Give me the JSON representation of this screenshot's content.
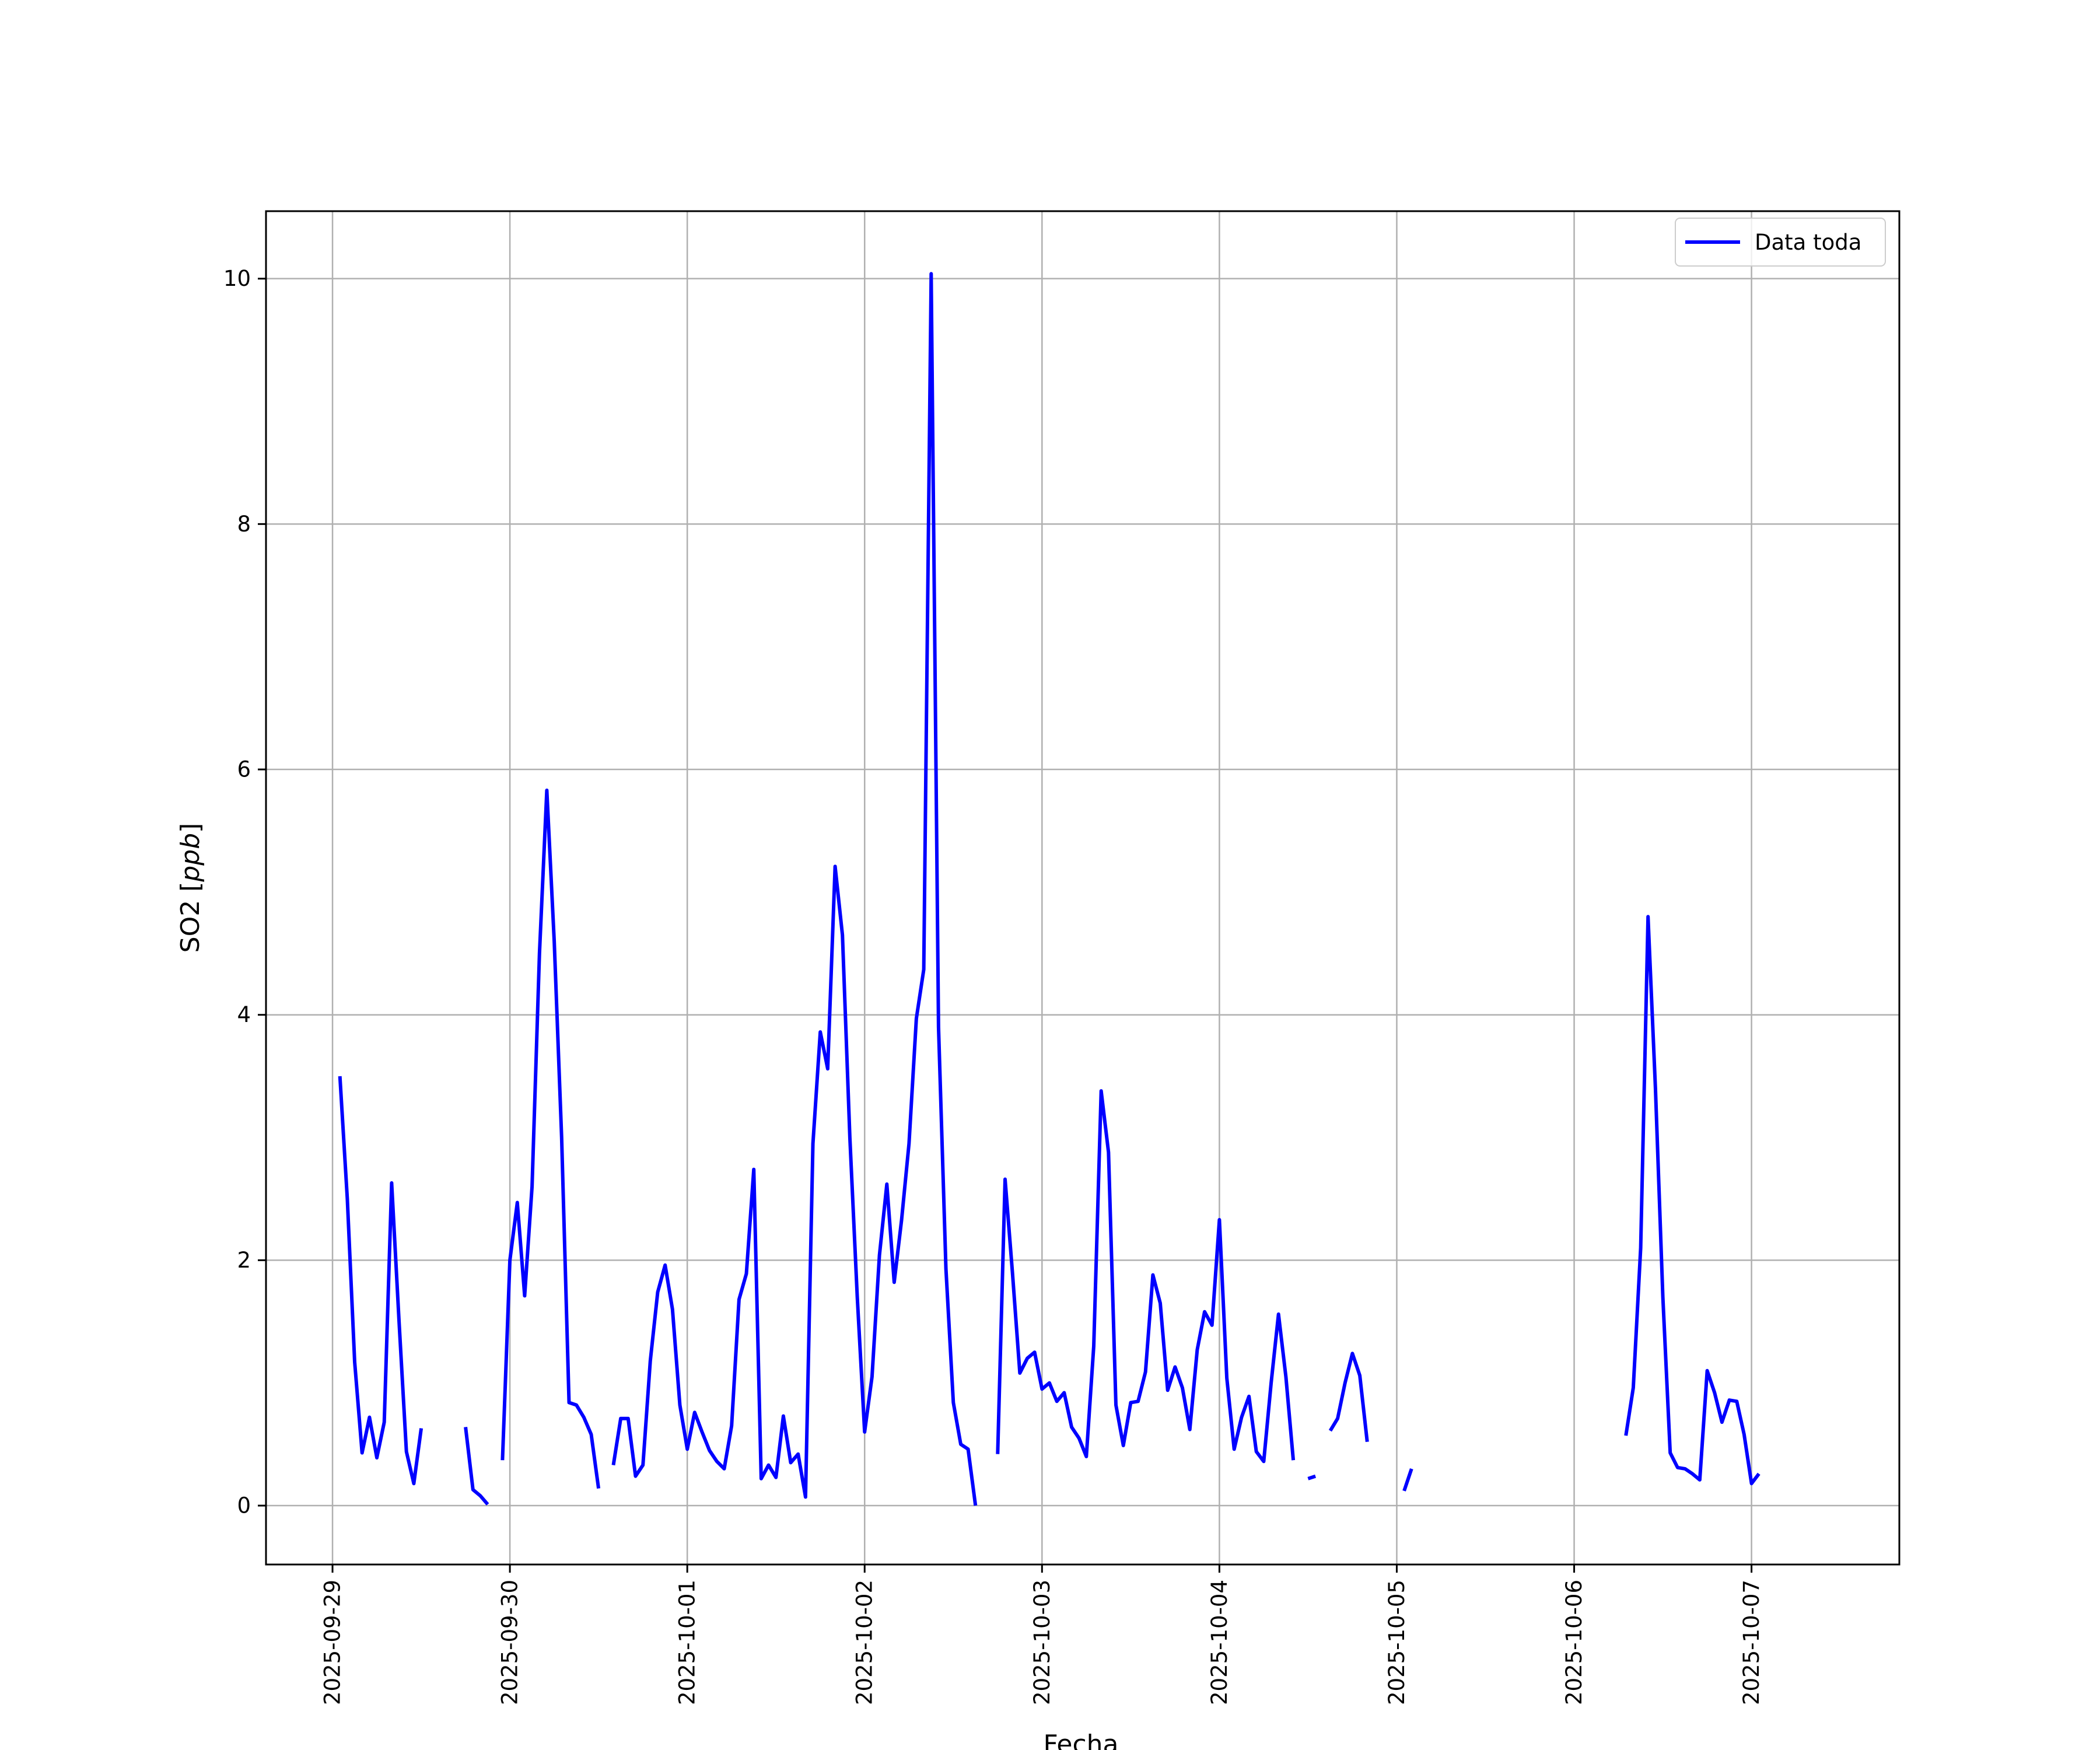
{
  "chart_data": {
    "type": "line",
    "xlabel": "Fecha",
    "ylabel_main": "SO2 [",
    "ylabel_unit": "ppb",
    "ylabel_close": "]",
    "ylim": [
      -0.48,
      10.55
    ],
    "xlim": [
      "2025-09-28T15:00",
      "2025-10-07T20:00"
    ],
    "x_ticks": [
      "2025-09-29",
      "2025-09-30",
      "2025-10-01",
      "2025-10-02",
      "2025-10-03",
      "2025-10-04",
      "2025-10-05",
      "2025-10-06",
      "2025-10-07"
    ],
    "y_ticks": [
      0,
      2,
      4,
      6,
      8,
      10
    ],
    "grid": true,
    "legend_position": "top-right",
    "colors": {
      "series": "#0000ff",
      "grid": "#b0b0b0",
      "axes": "#000000"
    },
    "series": [
      {
        "name": "Data toda",
        "segments": [
          [
            [
              "2025-09-29T01:00",
              3.5
            ],
            [
              "2025-09-29T02:00",
              2.5
            ],
            [
              "2025-09-29T03:00",
              1.17
            ],
            [
              "2025-09-29T04:00",
              0.43
            ],
            [
              "2025-09-29T05:00",
              0.72
            ],
            [
              "2025-09-29T06:00",
              0.39
            ],
            [
              "2025-09-29T07:00",
              0.68
            ],
            [
              "2025-09-29T08:00",
              2.63
            ],
            [
              "2025-09-29T09:00",
              1.5
            ],
            [
              "2025-09-29T10:00",
              0.44
            ],
            [
              "2025-09-29T11:00",
              0.18
            ],
            [
              "2025-09-29T12:00",
              0.63
            ]
          ],
          [
            [
              "2025-09-29T18:00",
              0.64
            ],
            [
              "2025-09-29T19:00",
              0.13
            ],
            [
              "2025-09-29T20:00",
              0.08
            ],
            [
              "2025-09-29T21:00",
              0.01
            ]
          ],
          [
            [
              "2025-09-29T23:00",
              0.37
            ],
            [
              "2025-09-30T00:00",
              2.0
            ],
            [
              "2025-09-30T01:00",
              2.47
            ],
            [
              "2025-09-30T02:00",
              1.71
            ],
            [
              "2025-09-30T03:00",
              2.6
            ],
            [
              "2025-09-30T04:00",
              4.5
            ],
            [
              "2025-09-30T05:00",
              5.83
            ],
            [
              "2025-09-30T06:00",
              4.6
            ],
            [
              "2025-09-30T07:00",
              3.0
            ],
            [
              "2025-09-30T08:00",
              0.84
            ],
            [
              "2025-09-30T09:00",
              0.82
            ],
            [
              "2025-09-30T10:00",
              0.72
            ],
            [
              "2025-09-30T11:00",
              0.58
            ],
            [
              "2025-09-30T12:00",
              0.14
            ]
          ],
          [
            [
              "2025-09-30T14:00",
              0.33
            ],
            [
              "2025-09-30T15:00",
              0.71
            ],
            [
              "2025-09-30T16:00",
              0.71
            ],
            [
              "2025-09-30T17:00",
              0.24
            ],
            [
              "2025-09-30T18:00",
              0.33
            ],
            [
              "2025-09-30T19:00",
              1.18
            ],
            [
              "2025-09-30T20:00",
              1.74
            ],
            [
              "2025-09-30T21:00",
              1.96
            ],
            [
              "2025-09-30T22:00",
              1.6
            ],
            [
              "2025-09-30T23:00",
              0.82
            ],
            [
              "2025-10-01T00:00",
              0.46
            ],
            [
              "2025-10-01T01:00",
              0.76
            ],
            [
              "2025-10-01T02:00",
              0.6
            ],
            [
              "2025-10-01T03:00",
              0.45
            ],
            [
              "2025-10-01T04:00",
              0.36
            ],
            [
              "2025-10-01T05:00",
              0.3
            ],
            [
              "2025-10-01T06:00",
              0.65
            ],
            [
              "2025-10-01T07:00",
              1.68
            ],
            [
              "2025-10-01T08:00",
              1.89
            ],
            [
              "2025-10-01T09:00",
              2.74
            ],
            [
              "2025-10-01T10:00",
              0.22
            ],
            [
              "2025-10-01T11:00",
              0.33
            ],
            [
              "2025-10-01T12:00",
              0.23
            ],
            [
              "2025-10-01T13:00",
              0.73
            ],
            [
              "2025-10-01T14:00",
              0.35
            ],
            [
              "2025-10-01T15:00",
              0.42
            ],
            [
              "2025-10-01T16:00",
              0.07
            ],
            [
              "2025-10-01T17:00",
              2.95
            ],
            [
              "2025-10-01T18:00",
              3.86
            ],
            [
              "2025-10-01T19:00",
              3.56
            ],
            [
              "2025-10-01T20:00",
              5.21
            ],
            [
              "2025-10-01T21:00",
              4.65
            ],
            [
              "2025-10-01T22:00",
              3.0
            ],
            [
              "2025-10-01T23:00",
              1.7
            ],
            [
              "2025-10-02T00:00",
              0.6
            ],
            [
              "2025-10-02T01:00",
              1.05
            ],
            [
              "2025-10-02T02:00",
              2.04
            ],
            [
              "2025-10-02T03:00",
              2.62
            ],
            [
              "2025-10-02T04:00",
              1.82
            ],
            [
              "2025-10-02T05:00",
              2.33
            ],
            [
              "2025-10-02T06:00",
              2.95
            ],
            [
              "2025-10-02T07:00",
              3.97
            ],
            [
              "2025-10-02T08:00",
              4.37
            ],
            [
              "2025-10-02T09:00",
              10.04
            ],
            [
              "2025-10-02T10:00",
              3.9
            ],
            [
              "2025-10-02T11:00",
              1.93
            ],
            [
              "2025-10-02T12:00",
              0.84
            ],
            [
              "2025-10-02T13:00",
              0.5
            ],
            [
              "2025-10-02T14:00",
              0.46
            ],
            [
              "2025-10-02T15:00",
              0.0
            ]
          ],
          [
            [
              "2025-10-02T18:00",
              0.42
            ],
            [
              "2025-10-02T19:00",
              2.66
            ],
            [
              "2025-10-02T20:00",
              1.9
            ],
            [
              "2025-10-02T21:00",
              1.08
            ],
            [
              "2025-10-02T22:00",
              1.2
            ],
            [
              "2025-10-02T23:00",
              1.25
            ],
            [
              "2025-10-03T00:00",
              0.95
            ],
            [
              "2025-10-03T01:00",
              1.0
            ],
            [
              "2025-10-03T02:00",
              0.85
            ],
            [
              "2025-10-03T03:00",
              0.92
            ],
            [
              "2025-10-03T04:00",
              0.64
            ],
            [
              "2025-10-03T05:00",
              0.55
            ],
            [
              "2025-10-03T06:00",
              0.4
            ],
            [
              "2025-10-03T07:00",
              1.3
            ],
            [
              "2025-10-03T08:00",
              3.38
            ],
            [
              "2025-10-03T09:00",
              2.88
            ],
            [
              "2025-10-03T10:00",
              0.82
            ],
            [
              "2025-10-03T11:00",
              0.49
            ],
            [
              "2025-10-03T12:00",
              0.84
            ],
            [
              "2025-10-03T13:00",
              0.85
            ],
            [
              "2025-10-03T14:00",
              1.09
            ],
            [
              "2025-10-03T15:00",
              1.88
            ],
            [
              "2025-10-03T16:00",
              1.65
            ],
            [
              "2025-10-03T17:00",
              0.94
            ],
            [
              "2025-10-03T18:00",
              1.13
            ],
            [
              "2025-10-03T19:00",
              0.96
            ],
            [
              "2025-10-03T20:00",
              0.62
            ],
            [
              "2025-10-03T21:00",
              1.27
            ],
            [
              "2025-10-03T22:00",
              1.58
            ],
            [
              "2025-10-03T23:00",
              1.47
            ],
            [
              "2025-10-04T00:00",
              2.33
            ],
            [
              "2025-10-04T01:00",
              1.04
            ],
            [
              "2025-10-04T02:00",
              0.46
            ],
            [
              "2025-10-04T03:00",
              0.72
            ],
            [
              "2025-10-04T04:00",
              0.89
            ],
            [
              "2025-10-04T05:00",
              0.44
            ],
            [
              "2025-10-04T06:00",
              0.36
            ],
            [
              "2025-10-04T07:00",
              1.0
            ],
            [
              "2025-10-04T08:00",
              1.56
            ],
            [
              "2025-10-04T09:00",
              1.05
            ],
            [
              "2025-10-04T10:00",
              0.37
            ]
          ],
          [
            [
              "2025-10-04T12:00",
              0.22
            ],
            [
              "2025-10-04T13:00",
              0.24
            ]
          ],
          [
            [
              "2025-10-04T15:00",
              0.61
            ],
            [
              "2025-10-04T16:00",
              0.71
            ],
            [
              "2025-10-04T17:00",
              1.0
            ],
            [
              "2025-10-04T18:00",
              1.24
            ],
            [
              "2025-10-04T19:00",
              1.06
            ],
            [
              "2025-10-04T20:00",
              0.52
            ]
          ],
          [
            [
              "2025-10-05T01:00",
              0.12
            ],
            [
              "2025-10-05T02:00",
              0.3
            ]
          ],
          [
            [
              "2025-10-06T07:00",
              0.57
            ],
            [
              "2025-10-06T08:00",
              0.96
            ],
            [
              "2025-10-06T09:00",
              2.1
            ],
            [
              "2025-10-06T10:00",
              4.8
            ],
            [
              "2025-10-06T11:00",
              3.4
            ],
            [
              "2025-10-06T12:00",
              1.7
            ],
            [
              "2025-10-06T13:00",
              0.43
            ],
            [
              "2025-10-06T14:00",
              0.31
            ],
            [
              "2025-10-06T15:00",
              0.3
            ],
            [
              "2025-10-06T16:00",
              0.26
            ],
            [
              "2025-10-06T17:00",
              0.21
            ],
            [
              "2025-10-06T18:00",
              1.1
            ],
            [
              "2025-10-06T19:00",
              0.92
            ],
            [
              "2025-10-06T20:00",
              0.68
            ],
            [
              "2025-10-06T21:00",
              0.86
            ],
            [
              "2025-10-06T22:00",
              0.85
            ],
            [
              "2025-10-06T23:00",
              0.58
            ],
            [
              "2025-10-07T00:00",
              0.18
            ],
            [
              "2025-10-07T01:00",
              0.26
            ]
          ]
        ]
      }
    ]
  }
}
